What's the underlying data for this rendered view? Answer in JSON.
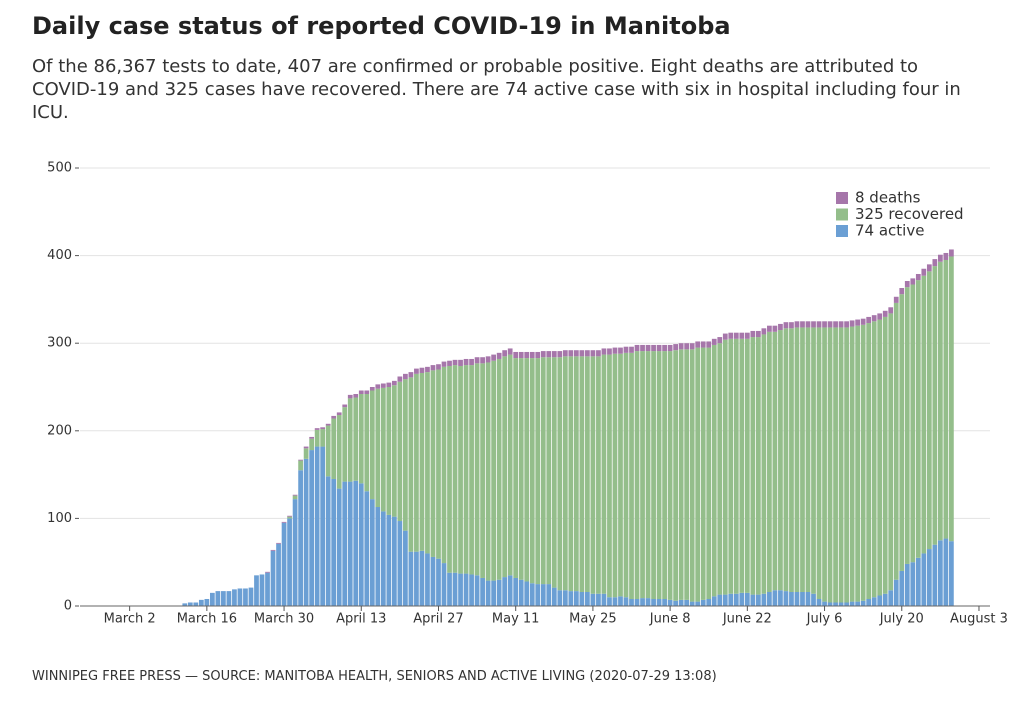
{
  "chart_data": {
    "type": "stacked-bar",
    "title": "Daily case status of reported COVID-19 in Manitoba",
    "subtitle": "Of the 86,367 tests to date, 407 are confirmed or probable positive. Eight deaths are attributed to COVID-19 and 325 cases have recovered. There are 74 active case with six in hospital including four in ICU.",
    "source": "WINNIPEG FREE PRESS — SOURCE: MANITOBA HEALTH, SENIORS AND ACTIVE LIVING (2020-07-29 13:08)",
    "x": [
      "March 12",
      "March 13",
      "March 14",
      "March 15",
      "March 16",
      "March 17",
      "March 18",
      "March 19",
      "March 20",
      "March 21",
      "March 22",
      "March 23",
      "March 24",
      "March 25",
      "March 26",
      "March 27",
      "March 28",
      "March 29",
      "March 30",
      "March 31",
      "April 1",
      "April 2",
      "April 3",
      "April 4",
      "April 5",
      "April 6",
      "April 7",
      "April 8",
      "April 9",
      "April 10",
      "April 11",
      "April 12",
      "April 13",
      "April 14",
      "April 15",
      "April 16",
      "April 17",
      "April 18",
      "April 19",
      "April 20",
      "April 21",
      "April 22",
      "April 23",
      "April 24",
      "April 25",
      "April 26",
      "April 27",
      "April 28",
      "April 29",
      "April 30",
      "May 1",
      "May 2",
      "May 3",
      "May 4",
      "May 5",
      "May 6",
      "May 7",
      "May 8",
      "May 9",
      "May 10",
      "May 11",
      "May 12",
      "May 13",
      "May 14",
      "May 15",
      "May 16",
      "May 17",
      "May 18",
      "May 19",
      "May 20",
      "May 21",
      "May 22",
      "May 23",
      "May 24",
      "May 25",
      "May 26",
      "May 27",
      "May 28",
      "May 29",
      "May 30",
      "May 31",
      "June 1",
      "June 2",
      "June 3",
      "June 4",
      "June 5",
      "June 6",
      "June 7",
      "June 8",
      "June 9",
      "June 10",
      "June 11",
      "June 12",
      "June 13",
      "June 14",
      "June 15",
      "June 16",
      "June 17",
      "June 18",
      "June 19",
      "June 20",
      "June 21",
      "June 22",
      "June 23",
      "June 24",
      "June 25",
      "June 26",
      "June 27",
      "June 28",
      "June 29",
      "June 30",
      "July 1",
      "July 2",
      "July 3",
      "July 4",
      "July 5",
      "July 6",
      "July 7",
      "July 8",
      "July 9",
      "July 10",
      "July 11",
      "July 12",
      "July 13",
      "July 14",
      "July 15",
      "July 16",
      "July 17",
      "July 18",
      "July 19",
      "July 20",
      "July 21",
      "July 22",
      "July 23",
      "July 24",
      "July 25",
      "July 26",
      "July 27",
      "July 28",
      "July 29"
    ],
    "series": [
      {
        "name": "74 active",
        "color": "#6b9fd4",
        "values": [
          3,
          4,
          4,
          7,
          8,
          15,
          17,
          17,
          17,
          19,
          20,
          20,
          21,
          35,
          36,
          38,
          63,
          71,
          95,
          100,
          122,
          155,
          168,
          178,
          182,
          182,
          148,
          145,
          134,
          142,
          142,
          143,
          140,
          131,
          122,
          113,
          108,
          104,
          102,
          97,
          86,
          62,
          62,
          63,
          60,
          56,
          54,
          49,
          38,
          38,
          37,
          37,
          36,
          35,
          32,
          29,
          29,
          30,
          33,
          35,
          32,
          30,
          28,
          26,
          25,
          25,
          25,
          21,
          18,
          18,
          17,
          17,
          16,
          16,
          14,
          14,
          14,
          10,
          10,
          11,
          10,
          8,
          8,
          9,
          9,
          8,
          8,
          8,
          7,
          6,
          7,
          7,
          5,
          5,
          7,
          8,
          11,
          13,
          13,
          14,
          14,
          15,
          15,
          13,
          13,
          14,
          16,
          18,
          18,
          17,
          16,
          16,
          16,
          16,
          14,
          8,
          5,
          4,
          4,
          4,
          4,
          5,
          5,
          6,
          8,
          10,
          12,
          14,
          18,
          30,
          40,
          48,
          50,
          55,
          60,
          65,
          70,
          75,
          77,
          74
        ]
      },
      {
        "name": "325 recovered",
        "color": "#94be8b",
        "values": [
          0,
          0,
          0,
          0,
          0,
          0,
          0,
          0,
          0,
          0,
          0,
          0,
          0,
          0,
          0,
          0,
          0,
          0,
          0,
          2,
          4,
          11,
          12,
          13,
          19,
          20,
          58,
          69,
          84,
          85,
          95,
          95,
          102,
          111,
          124,
          135,
          141,
          146,
          150,
          159,
          173,
          199,
          203,
          203,
          207,
          213,
          216,
          224,
          236,
          237,
          237,
          238,
          239,
          242,
          245,
          249,
          251,
          252,
          252,
          252,
          251,
          253,
          255,
          257,
          258,
          259,
          259,
          263,
          266,
          267,
          268,
          268,
          269,
          269,
          271,
          271,
          273,
          277,
          278,
          277,
          279,
          281,
          283,
          282,
          282,
          283,
          283,
          283,
          284,
          286,
          286,
          286,
          288,
          290,
          288,
          287,
          287,
          287,
          291,
          291,
          291,
          290,
          290,
          294,
          294,
          296,
          297,
          295,
          297,
          300,
          301,
          302,
          302,
          302,
          304,
          310,
          313,
          314,
          314,
          314,
          314,
          314,
          315,
          315,
          315,
          315,
          315,
          316,
          316,
          316,
          316,
          316,
          317,
          317,
          317,
          317,
          318,
          318,
          318,
          325
        ]
      },
      {
        "name": "8 deaths",
        "color": "#a676aa",
        "values": [
          0,
          0,
          0,
          0,
          0,
          0,
          0,
          0,
          0,
          0,
          0,
          0,
          0,
          0,
          0,
          1,
          1,
          1,
          1,
          1,
          1,
          1,
          2,
          2,
          2,
          2,
          2,
          3,
          3,
          3,
          4,
          4,
          4,
          4,
          4,
          5,
          5,
          5,
          5,
          6,
          6,
          6,
          6,
          6,
          6,
          6,
          6,
          6,
          6,
          6,
          7,
          7,
          7,
          7,
          7,
          7,
          7,
          7,
          7,
          7,
          7,
          7,
          7,
          7,
          7,
          7,
          7,
          7,
          7,
          7,
          7,
          7,
          7,
          7,
          7,
          7,
          7,
          7,
          7,
          7,
          7,
          7,
          7,
          7,
          7,
          7,
          7,
          7,
          7,
          7,
          7,
          7,
          7,
          7,
          7,
          7,
          7,
          7,
          7,
          7,
          7,
          7,
          7,
          7,
          7,
          7,
          7,
          7,
          7,
          7,
          7,
          7,
          7,
          7,
          7,
          7,
          7,
          7,
          7,
          7,
          7,
          7,
          7,
          7,
          7,
          7,
          7,
          7,
          7,
          7,
          7,
          7,
          7,
          7,
          8,
          8,
          8,
          8,
          8,
          8
        ]
      }
    ],
    "xlim": [
      "February 22",
      "August 5"
    ],
    "xticks": [
      "March 2",
      "March 16",
      "March 30",
      "April 13",
      "April 27",
      "May 11",
      "May 25",
      "June 8",
      "June 22",
      "July 6",
      "July 20",
      "August 3"
    ],
    "ylim": [
      0,
      500
    ],
    "yticks": [
      0,
      100,
      200,
      300,
      400,
      500
    ],
    "grid": true,
    "legend": "upper right"
  }
}
